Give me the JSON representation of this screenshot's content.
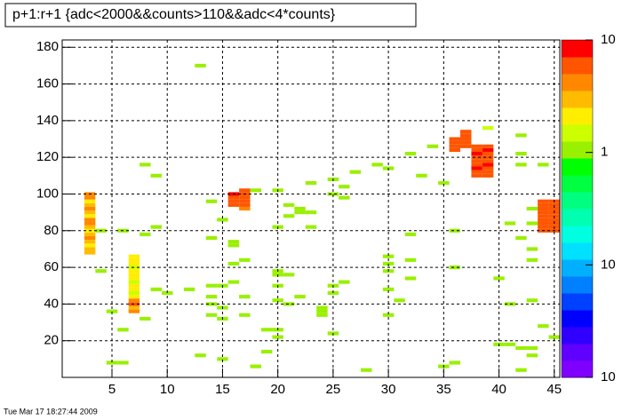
{
  "chart_data": {
    "type": "heatmap",
    "title": "p+1:r+1 {adc<2000&&counts>110&&adc<4*counts}",
    "timestamp": "Tue Mar 17 18:27:44 2009",
    "xlim": [
      0.5,
      45.5
    ],
    "xticks": [
      5,
      10,
      15,
      20,
      25,
      30,
      35,
      40,
      45
    ],
    "ylim": [
      0,
      184
    ],
    "yticks": [
      20,
      40,
      60,
      80,
      100,
      120,
      140,
      160,
      180
    ],
    "grid": true,
    "zlog": true,
    "zlim": [
      0.01,
      10
    ],
    "zticks": [
      {
        "value": 10,
        "label": "10"
      },
      1,
      {
        "value": 0.1,
        "label": "10"
      },
      {
        "value": 0.01,
        "label": "10"
      }
    ],
    "palette": [
      "#8000ff",
      "#6000ff",
      "#3000ff",
      "#0000ff",
      "#0040ff",
      "#0080ff",
      "#00b0ff",
      "#00e0ff",
      "#00ffe0",
      "#00ffb0",
      "#00ff80",
      "#00ff40",
      "#00ff00",
      "#99f000",
      "#ccff00",
      "#ffee00",
      "#ffbb00",
      "#ff8800",
      "#ff5500",
      "#ff0000"
    ],
    "x": [
      3,
      3,
      3,
      3,
      3,
      3,
      3,
      3,
      3,
      3,
      3,
      3,
      3,
      3,
      3,
      3,
      3,
      7,
      7,
      7,
      7,
      7,
      7,
      7,
      7,
      7,
      7,
      7,
      7,
      7,
      7,
      7,
      7,
      16,
      16,
      16,
      16,
      17,
      17,
      17,
      17,
      17,
      17,
      36,
      36,
      36,
      36,
      37,
      37,
      37,
      37,
      37,
      38,
      38,
      38,
      38,
      38,
      38,
      38,
      38,
      38,
      39,
      39,
      39,
      39,
      39,
      39,
      39,
      39,
      39,
      44,
      44,
      44,
      44,
      44,
      44,
      44,
      44,
      44,
      45,
      45,
      45,
      45,
      45,
      45,
      45,
      45,
      45,
      4,
      4,
      5,
      5,
      6,
      6,
      6,
      8,
      8,
      8,
      9,
      9,
      9,
      10,
      12,
      13,
      13,
      14,
      14,
      14,
      14,
      14,
      14,
      15,
      15,
      15,
      15,
      15,
      16,
      16,
      16,
      16,
      17,
      17,
      17,
      18,
      18,
      19,
      19,
      20,
      20,
      20,
      20,
      20,
      20,
      20,
      20,
      21,
      21,
      21,
      21,
      22,
      22,
      22,
      23,
      23,
      23,
      24,
      24,
      24,
      25,
      25,
      25,
      25,
      25,
      26,
      26,
      26,
      27,
      28,
      29,
      30,
      30,
      30,
      30,
      30,
      30,
      31,
      32,
      32,
      32,
      32,
      33,
      34,
      35,
      35,
      36,
      36,
      36,
      39,
      40,
      40,
      41,
      41,
      41,
      42,
      42,
      42,
      42,
      42,
      42,
      43,
      43,
      43,
      43,
      43,
      43,
      43,
      44,
      44,
      45
    ],
    "y": [
      68,
      70,
      72,
      74,
      76,
      78,
      80,
      82,
      84,
      86,
      88,
      90,
      92,
      94,
      96,
      98,
      100,
      36,
      38,
      40,
      42,
      44,
      46,
      48,
      50,
      52,
      54,
      56,
      58,
      60,
      62,
      64,
      66,
      94,
      96,
      98,
      100,
      92,
      94,
      96,
      98,
      100,
      102,
      124,
      126,
      128,
      130,
      126,
      128,
      130,
      132,
      134,
      110,
      112,
      114,
      116,
      118,
      120,
      122,
      124,
      126,
      110,
      112,
      114,
      116,
      118,
      120,
      122,
      124,
      126,
      80,
      82,
      84,
      86,
      88,
      90,
      92,
      94,
      96,
      80,
      82,
      84,
      86,
      88,
      90,
      92,
      94,
      96,
      80,
      58,
      36,
      8,
      80,
      26,
      8,
      32,
      78,
      116,
      110,
      82,
      48,
      46,
      48,
      170,
      12,
      96,
      76,
      50,
      44,
      34,
      40,
      86,
      50,
      38,
      32,
      10,
      74,
      72,
      62,
      52,
      64,
      34,
      44,
      102,
      6,
      26,
      14,
      102,
      82,
      58,
      56,
      50,
      42,
      26,
      22,
      94,
      88,
      56,
      40,
      92,
      90,
      44,
      106,
      90,
      82,
      38,
      36,
      34,
      108,
      100,
      50,
      46,
      24,
      104,
      98,
      52,
      112,
      4,
      116,
      114,
      66,
      62,
      58,
      48,
      34,
      42,
      122,
      78,
      64,
      54,
      110,
      126,
      106,
      6,
      80,
      60,
      8,
      136,
      54,
      18,
      84,
      40,
      18,
      132,
      122,
      116,
      76,
      4,
      16,
      92,
      84,
      70,
      64,
      42,
      16,
      12,
      116,
      28,
      22
    ],
    "values": [
      3,
      3.5,
      2.5,
      3,
      4,
      3,
      2,
      3.5,
      5,
      4,
      2.5,
      3,
      4.5,
      3,
      2.5,
      4,
      5,
      4,
      3,
      6,
      4,
      2,
      1.5,
      2,
      2.5,
      1.5,
      2,
      2.5,
      2,
      1.5,
      2,
      2.5,
      2,
      7,
      6,
      7,
      8,
      4,
      6,
      7,
      6,
      7,
      6,
      6,
      7,
      6,
      7,
      6,
      7,
      6,
      7,
      6,
      6,
      7,
      8,
      7,
      6,
      7,
      8,
      7,
      6,
      7,
      6,
      7,
      8,
      7,
      6,
      7,
      8,
      7,
      7,
      7,
      7,
      7,
      7,
      7,
      7,
      7,
      7,
      7,
      7,
      7,
      7,
      7,
      7,
      7,
      7,
      7,
      1,
      1,
      1,
      1,
      1,
      1,
      1,
      1,
      1,
      1,
      1,
      1,
      1,
      1,
      1,
      1,
      1,
      1,
      1,
      1,
      1,
      1,
      1,
      1,
      1,
      1,
      1,
      1,
      1,
      1,
      1,
      1,
      1,
      1,
      1,
      1,
      1,
      1,
      1,
      1,
      1,
      1,
      1,
      1,
      1,
      1,
      1,
      1,
      1,
      1,
      1,
      1,
      1,
      1,
      1,
      1,
      1,
      1,
      1,
      1,
      1,
      1,
      1,
      1,
      1,
      1,
      1,
      1,
      1,
      1,
      1,
      1,
      1,
      1,
      1,
      1,
      1,
      1,
      1,
      1,
      1,
      1,
      1,
      1,
      1,
      1,
      1,
      1,
      1,
      1.5,
      1,
      1,
      1,
      1,
      1,
      1,
      1,
      1,
      1,
      1,
      1,
      1,
      1,
      1,
      1,
      1,
      1,
      1,
      1,
      1,
      1
    ]
  }
}
